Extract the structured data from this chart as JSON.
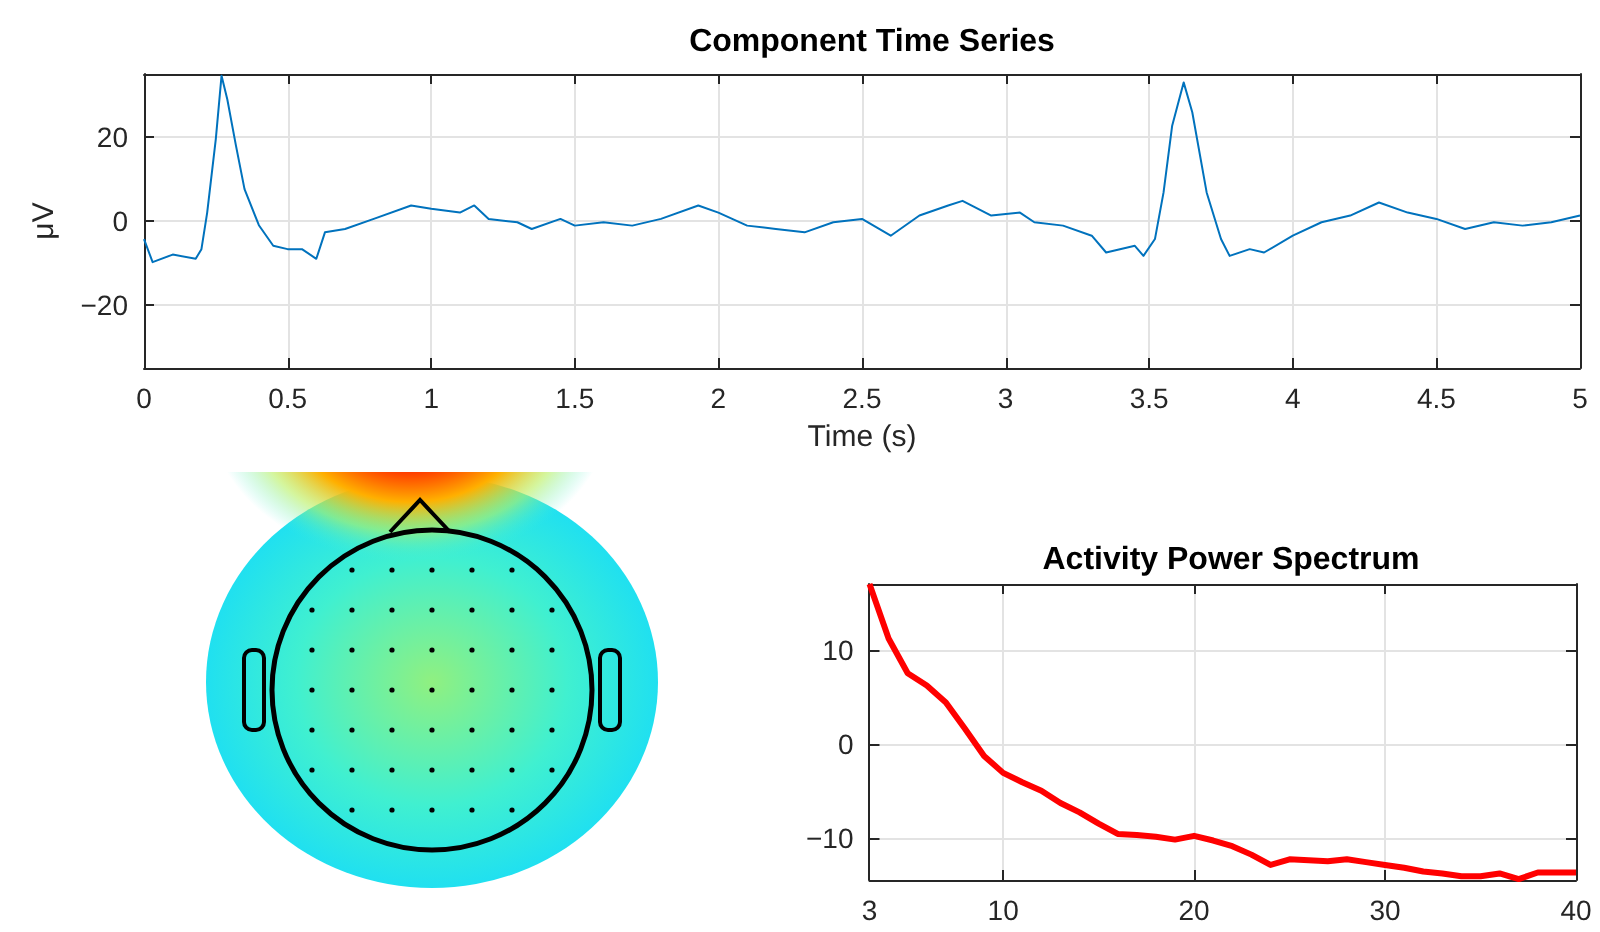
{
  "chart_data": [
    {
      "type": "line",
      "title": "Component Time Series",
      "xlabel": "Time (s)",
      "ylabel": "μV",
      "xlim": [
        0,
        5
      ],
      "xticks": [
        0,
        0.5,
        1,
        1.5,
        2,
        2.5,
        3,
        3.5,
        4,
        4.5,
        5
      ],
      "ylim": [
        -35,
        35
      ],
      "yticks": [
        -20,
        0,
        20
      ],
      "grid": true,
      "marker": "none",
      "line_style": "solid",
      "series": [
        {
          "color": "#0072bd",
          "x": [
            0,
            0.03,
            0.1,
            0.18,
            0.2,
            0.22,
            0.25,
            0.27,
            0.29,
            0.32,
            0.35,
            0.4,
            0.45,
            0.5,
            0.55,
            0.6,
            0.63,
            0.7,
            0.8,
            0.93,
            1.0,
            1.1,
            1.15,
            1.2,
            1.3,
            1.35,
            1.45,
            1.5,
            1.6,
            1.7,
            1.8,
            1.93,
            2.0,
            2.1,
            2.2,
            2.3,
            2.4,
            2.5,
            2.6,
            2.7,
            2.8,
            2.85,
            2.95,
            3.05,
            3.1,
            3.2,
            3.3,
            3.35,
            3.45,
            3.48,
            3.52,
            3.55,
            3.58,
            3.62,
            3.65,
            3.7,
            3.75,
            3.78,
            3.85,
            3.9,
            4.0,
            4.1,
            4.2,
            4.3,
            4.4,
            4.5,
            4.6,
            4.7,
            4.8,
            4.9,
            5.0
          ],
          "values": [
            -4.3,
            -9.8,
            -8,
            -9,
            -6.7,
            2,
            19.5,
            34.6,
            29,
            18,
            7.6,
            -1,
            -5.9,
            -6.7,
            -6.7,
            -9,
            -2.7,
            -1.9,
            0.5,
            3.7,
            2.9,
            2,
            3.7,
            0.5,
            -0.3,
            -1.9,
            0.5,
            -1.1,
            -0.3,
            -1.1,
            0.5,
            3.7,
            2,
            -1.1,
            -1.9,
            -2.7,
            -0.3,
            0.5,
            -3.5,
            1.3,
            3.7,
            4.8,
            1.3,
            2,
            -0.3,
            -1.1,
            -3.5,
            -7.5,
            -5.9,
            -8.3,
            -4.3,
            6.8,
            22.7,
            33,
            25.9,
            6.8,
            -4.3,
            -8.3,
            -6.7,
            -7.5,
            -3.5,
            -0.3,
            1.3,
            4.4,
            2,
            0.5,
            -1.9,
            -0.3,
            -1.1,
            -0.3,
            1.3
          ]
        }
      ]
    },
    {
      "type": "line",
      "title": "Activity Power Spectrum",
      "xlim": [
        3,
        40
      ],
      "xticks": [
        3,
        10,
        20,
        30,
        40
      ],
      "ylim": [
        -14.5,
        17
      ],
      "yticks": [
        -10,
        0,
        10
      ],
      "grid": true,
      "marker": "none",
      "line_style": "solid",
      "series": [
        {
          "color": "#ff0000",
          "x": [
            3,
            4,
            5,
            6,
            7,
            8,
            9,
            10,
            11,
            12,
            13,
            14,
            15,
            16,
            17,
            18,
            19,
            20,
            21,
            22,
            23,
            24,
            25,
            26,
            27,
            28,
            29,
            30,
            31,
            32,
            33,
            34,
            35,
            36,
            37,
            38,
            39,
            40
          ],
          "values": [
            17,
            11.2,
            7.5,
            6.2,
            4.4,
            1.6,
            -1.3,
            -3.1,
            -4.1,
            -5,
            -6.3,
            -7.3,
            -8.5,
            -9.6,
            -9.7,
            -9.9,
            -10.2,
            -9.8,
            -10.3,
            -10.9,
            -11.8,
            -12.9,
            -12.3,
            -12.4,
            -12.5,
            -12.3,
            -12.6,
            -12.9,
            -13.2,
            -13.6,
            -13.8,
            -14.1,
            -14.1,
            -13.8,
            -14.4,
            -13.7,
            -13.7,
            -13.7
          ]
        }
      ]
    }
  ]
}
